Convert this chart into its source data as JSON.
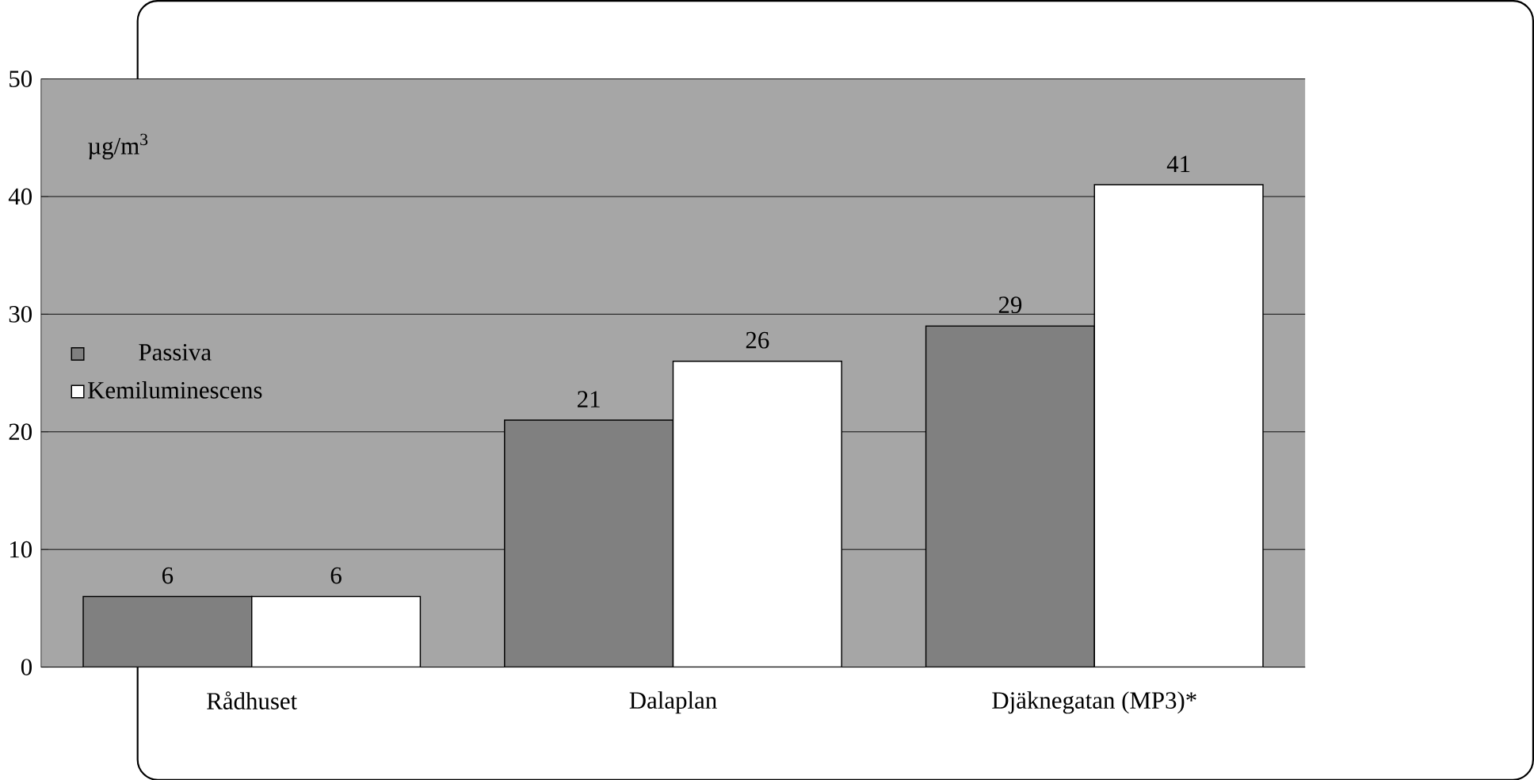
{
  "chart_data": {
    "type": "bar",
    "ylabel": "µg/m$^{3}$",
    "categories": [
      "Rådhuset",
      "Dalaplan",
      "Djäknegatan (MP3)*"
    ],
    "series": [
      {
        "name": "Passiva",
        "color": "#808080",
        "values": [
          6,
          21,
          29
        ]
      },
      {
        "name": "Kemiluminescens",
        "color": "#ffffff",
        "values": [
          6,
          26,
          41
        ]
      }
    ],
    "ylim": [
      0,
      50
    ],
    "yticks": [
      0,
      10,
      20,
      30,
      40,
      50
    ],
    "grid": "y",
    "legend": "left",
    "data_labels": true
  }
}
